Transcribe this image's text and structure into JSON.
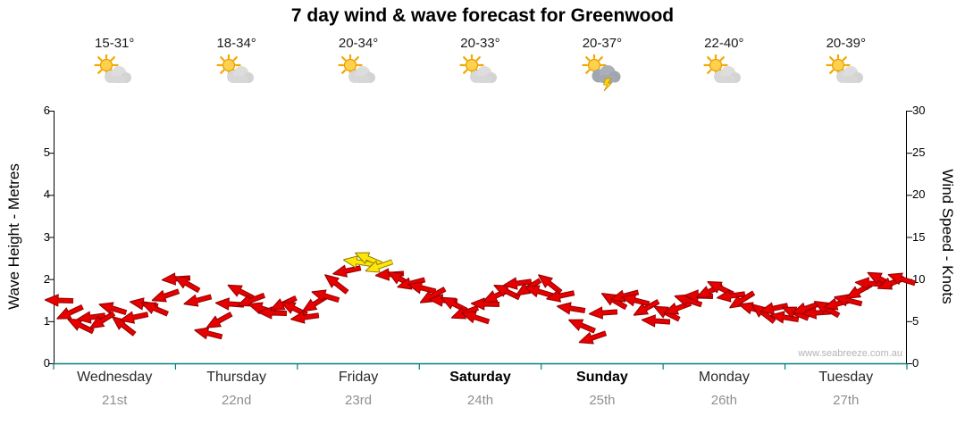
{
  "title": "7 day wind & wave forecast for Greenwood",
  "watermark": "www.seabreeze.com.au",
  "y_left": {
    "title": "Wave Height - Metres",
    "min": 0,
    "max": 6,
    "ticks": [
      0,
      1,
      2,
      3,
      4,
      5,
      6
    ]
  },
  "y_right": {
    "title": "Wind Speed - Knots",
    "min": 0,
    "max": 30,
    "ticks": [
      0,
      5,
      10,
      15,
      20,
      25,
      30
    ]
  },
  "days": [
    {
      "name": "Wednesday",
      "date": "21st",
      "temp": "15-31°",
      "icon": "sun-cloud",
      "weekend": false
    },
    {
      "name": "Thursday",
      "date": "22nd",
      "temp": "18-34°",
      "icon": "sun-cloud",
      "weekend": false
    },
    {
      "name": "Friday",
      "date": "23rd",
      "temp": "20-34°",
      "icon": "sun-cloud",
      "weekend": false
    },
    {
      "name": "Saturday",
      "date": "24th",
      "temp": "20-33°",
      "icon": "sun-cloud",
      "weekend": true
    },
    {
      "name": "Sunday",
      "date": "25th",
      "temp": "20-37°",
      "icon": "storm",
      "weekend": true
    },
    {
      "name": "Monday",
      "date": "26th",
      "temp": "22-40°",
      "icon": "sun-cloud",
      "weekend": false
    },
    {
      "name": "Tuesday",
      "date": "27th",
      "temp": "20-39°",
      "icon": "sun-cloud",
      "weekend": false
    }
  ],
  "colors": {
    "arrow_red": "#E60000",
    "arrow_red_stroke": "#8F0000",
    "arrow_yellow": "#FFE60A",
    "arrow_yellow_stroke": "#8F7B00",
    "axis": "#000000",
    "baseline": "#008080",
    "date_gray": "#8F8F8F",
    "watermark_gray": "#B4B4B4"
  },
  "chart_data": {
    "type": "scatter",
    "title": "7 day wind & wave forecast for Greenwood",
    "x_categories": [
      "Wednesday 21st",
      "Thursday 22nd",
      "Friday 23rd",
      "Saturday 24th",
      "Sunday 25th",
      "Monday 26th",
      "Tuesday 27th"
    ],
    "ylabel_left": "Wave Height - Metres",
    "ylim_left": [
      0,
      6
    ],
    "ylabel_right": "Wind Speed - Knots",
    "ylim_right": [
      0,
      30
    ],
    "grid": false,
    "legend": "none",
    "series": [
      {
        "name": "wind-arrows",
        "units": "knots",
        "note": "80 samples spread evenly across 7 days; direction = arrow rotation in degrees (0 = pointing right); yellow_indices are stronger-wind arrows drawn yellow",
        "values": [
          7.5,
          6,
          4.5,
          5.5,
          5,
          6.5,
          4.5,
          5.5,
          7,
          6.5,
          8,
          10,
          9.5,
          7.5,
          3.5,
          5,
          7,
          8.5,
          7.5,
          6.5,
          6,
          7,
          6.5,
          5.5,
          7,
          8,
          9.5,
          11,
          12,
          12.5,
          11.5,
          10.5,
          10,
          9.5,
          9,
          8,
          7.5,
          7,
          6,
          5.5,
          7,
          8,
          8.5,
          9.5,
          9,
          8.5,
          9.5,
          8,
          6.5,
          4.5,
          3,
          6,
          7.5,
          8,
          7.5,
          6.5,
          5,
          6,
          6.5,
          7.5,
          8,
          8.5,
          9,
          8,
          7.5,
          6.5,
          6,
          6.5,
          5.5,
          6,
          6.5,
          6,
          6.5,
          7,
          7.5,
          8.5,
          9.5,
          10,
          9.5,
          10
        ],
        "directions_deg": [
          182,
          155,
          206,
          172,
          148,
          197,
          218,
          168,
          189,
          203,
          161,
          176,
          210,
          165,
          194,
          151,
          184,
          207,
          159,
          198,
          182,
          155,
          206,
          172,
          148,
          197,
          218,
          168,
          189,
          203,
          161,
          176,
          210,
          165,
          194,
          151,
          184,
          207,
          159,
          198,
          182,
          155,
          206,
          172,
          148,
          197,
          218,
          168,
          189,
          203,
          161,
          176,
          210,
          165,
          194,
          151,
          184,
          207,
          159,
          198,
          182,
          155,
          206,
          172,
          148,
          197,
          218,
          168,
          189,
          203,
          161,
          176,
          210,
          165,
          194,
          151,
          184,
          207,
          159,
          198
        ],
        "yellow_indices": [
          28,
          29,
          30
        ]
      }
    ]
  }
}
